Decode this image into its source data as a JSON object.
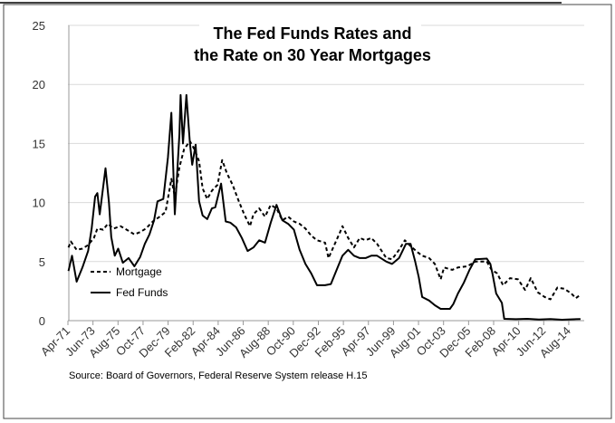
{
  "chart_data": {
    "type": "line",
    "title_line1": "The Fed Funds Rates and",
    "title_line2": "the Rate on 30 Year Mortgages",
    "source": "Source: Board of Governors, Federal Reserve System release H.15",
    "xlabel": "",
    "ylabel": "",
    "ylim": [
      0,
      25
    ],
    "yticks": [
      0,
      5,
      10,
      15,
      20,
      25
    ],
    "xticks": [
      "Apr-71",
      "Jun-73",
      "Aug-75",
      "Oct-77",
      "Dec-79",
      "Feb-82",
      "Apr-84",
      "Jun-86",
      "Aug-88",
      "Oct-90",
      "Dec-92",
      "Feb-95",
      "Apr-97",
      "Jun-99",
      "Aug-01",
      "Oct-03",
      "Dec-05",
      "Feb-08",
      "Apr-10",
      "Jun-12",
      "Aug-14"
    ],
    "grid": "horizontal",
    "legend_placement": "inside-bottom-left",
    "series": [
      {
        "name": "Mortgage",
        "style": "dashed",
        "color": "#000000",
        "x": [
          1971.3,
          1971.5,
          1972.0,
          1972.5,
          1973.0,
          1973.5,
          1973.8,
          1974.3,
          1974.7,
          1975.2,
          1975.8,
          1976.5,
          1977.0,
          1977.5,
          1978.0,
          1978.6,
          1979.2,
          1979.7,
          1980.2,
          1980.5,
          1980.9,
          1981.3,
          1981.8,
          1982.2,
          1982.6,
          1982.9,
          1983.3,
          1983.7,
          1984.2,
          1984.6,
          1985.0,
          1985.5,
          1986.0,
          1986.5,
          1987.0,
          1987.3,
          1987.8,
          1988.3,
          1988.8,
          1989.3,
          1989.8,
          1990.3,
          1990.8,
          1991.3,
          1991.8,
          1992.3,
          1992.8,
          1993.5,
          1993.8,
          1994.3,
          1994.8,
          1995.0,
          1995.5,
          1996.0,
          1996.5,
          1997.0,
          1997.5,
          1998.0,
          1998.8,
          1999.3,
          1999.9,
          2000.4,
          2000.9,
          2001.5,
          2001.9,
          2002.5,
          2003.0,
          2003.5,
          2003.8,
          2004.5,
          2005.0,
          2005.8,
          2006.5,
          2007.5,
          2007.9,
          2008.4,
          2008.9,
          2009.5,
          2010.2,
          2010.8,
          2011.3,
          2011.9,
          2012.5,
          2013.0,
          2013.6,
          2014.2,
          2014.8,
          2015.2,
          2015.6
        ],
        "values": [
          6.2,
          6.7,
          6.0,
          6.1,
          6.4,
          7.0,
          7.8,
          7.7,
          8.2,
          7.8,
          8.0,
          7.6,
          7.3,
          7.5,
          7.8,
          8.4,
          8.8,
          9.2,
          12.0,
          10.5,
          13.0,
          14.5,
          15.2,
          14.5,
          13.5,
          11.2,
          10.3,
          11.0,
          11.5,
          13.6,
          12.5,
          11.5,
          10.2,
          9.0,
          8.0,
          9.0,
          9.5,
          8.8,
          9.8,
          9.5,
          8.5,
          8.8,
          8.4,
          8.2,
          7.8,
          7.2,
          6.8,
          6.6,
          5.3,
          6.4,
          7.5,
          8.0,
          7.0,
          6.2,
          7.0,
          6.8,
          7.0,
          6.5,
          5.3,
          5.2,
          6.0,
          6.8,
          6.3,
          5.8,
          5.5,
          5.3,
          4.8,
          3.5,
          4.5,
          4.3,
          4.5,
          4.6,
          5.0,
          5.0,
          4.3,
          4.0,
          3.0,
          3.6,
          3.5,
          2.6,
          3.6,
          2.4,
          2.0,
          1.8,
          2.8,
          2.7,
          2.3,
          1.9,
          2.2
        ]
      },
      {
        "name": "Fed Funds",
        "style": "solid",
        "color": "#000000",
        "x": [
          1971.3,
          1971.6,
          1972.0,
          1972.5,
          1973.0,
          1973.3,
          1973.6,
          1973.8,
          1974.0,
          1974.5,
          1974.8,
          1975.0,
          1975.3,
          1975.6,
          1976.0,
          1976.5,
          1977.0,
          1977.5,
          1977.9,
          1978.3,
          1978.7,
          1979.0,
          1979.5,
          1979.9,
          1980.2,
          1980.5,
          1980.9,
          1981.0,
          1981.2,
          1981.5,
          1981.8,
          1982.0,
          1982.3,
          1982.6,
          1982.9,
          1983.3,
          1983.7,
          1984.0,
          1984.5,
          1984.9,
          1985.3,
          1985.8,
          1986.3,
          1986.8,
          1987.3,
          1987.8,
          1988.3,
          1988.8,
          1989.3,
          1989.8,
          1990.3,
          1990.8,
          1991.3,
          1991.8,
          1992.3,
          1992.8,
          1993.5,
          1994.0,
          1994.5,
          1995.0,
          1995.5,
          1996.0,
          1996.5,
          1997.0,
          1997.5,
          1998.0,
          1998.8,
          1999.3,
          1999.9,
          2000.5,
          2000.9,
          2001.3,
          2001.6,
          2001.9,
          2002.5,
          2003.0,
          2003.5,
          2004.3,
          2004.6,
          2005.0,
          2005.5,
          2006.0,
          2006.5,
          2007.5,
          2007.8,
          2008.0,
          2008.3,
          2008.8,
          2009.0,
          2010.0,
          2011.0,
          2012.0,
          2013.0,
          2014.0,
          2015.6
        ],
        "values": [
          4.2,
          5.5,
          3.3,
          4.5,
          5.9,
          7.8,
          10.5,
          10.8,
          9.0,
          12.9,
          10.0,
          7.1,
          5.5,
          6.1,
          4.9,
          5.3,
          4.6,
          5.4,
          6.5,
          7.3,
          8.5,
          10.1,
          10.3,
          13.8,
          17.6,
          9.0,
          15.8,
          19.1,
          15.0,
          19.1,
          15.1,
          13.2,
          14.9,
          10.1,
          8.9,
          8.6,
          9.5,
          9.6,
          11.6,
          8.4,
          8.3,
          7.9,
          7.0,
          5.9,
          6.2,
          6.8,
          6.6,
          8.3,
          9.8,
          8.5,
          8.2,
          7.7,
          6.0,
          4.8,
          4.0,
          3.0,
          3.0,
          3.1,
          4.3,
          5.5,
          6.0,
          5.5,
          5.3,
          5.3,
          5.5,
          5.5,
          5.0,
          4.8,
          5.3,
          6.5,
          6.5,
          5.0,
          3.7,
          2.0,
          1.7,
          1.3,
          1.0,
          1.0,
          1.4,
          2.3,
          3.2,
          4.3,
          5.2,
          5.25,
          4.8,
          3.9,
          2.3,
          1.5,
          0.15,
          0.12,
          0.15,
          0.1,
          0.14,
          0.08,
          0.14
        ]
      }
    ]
  }
}
